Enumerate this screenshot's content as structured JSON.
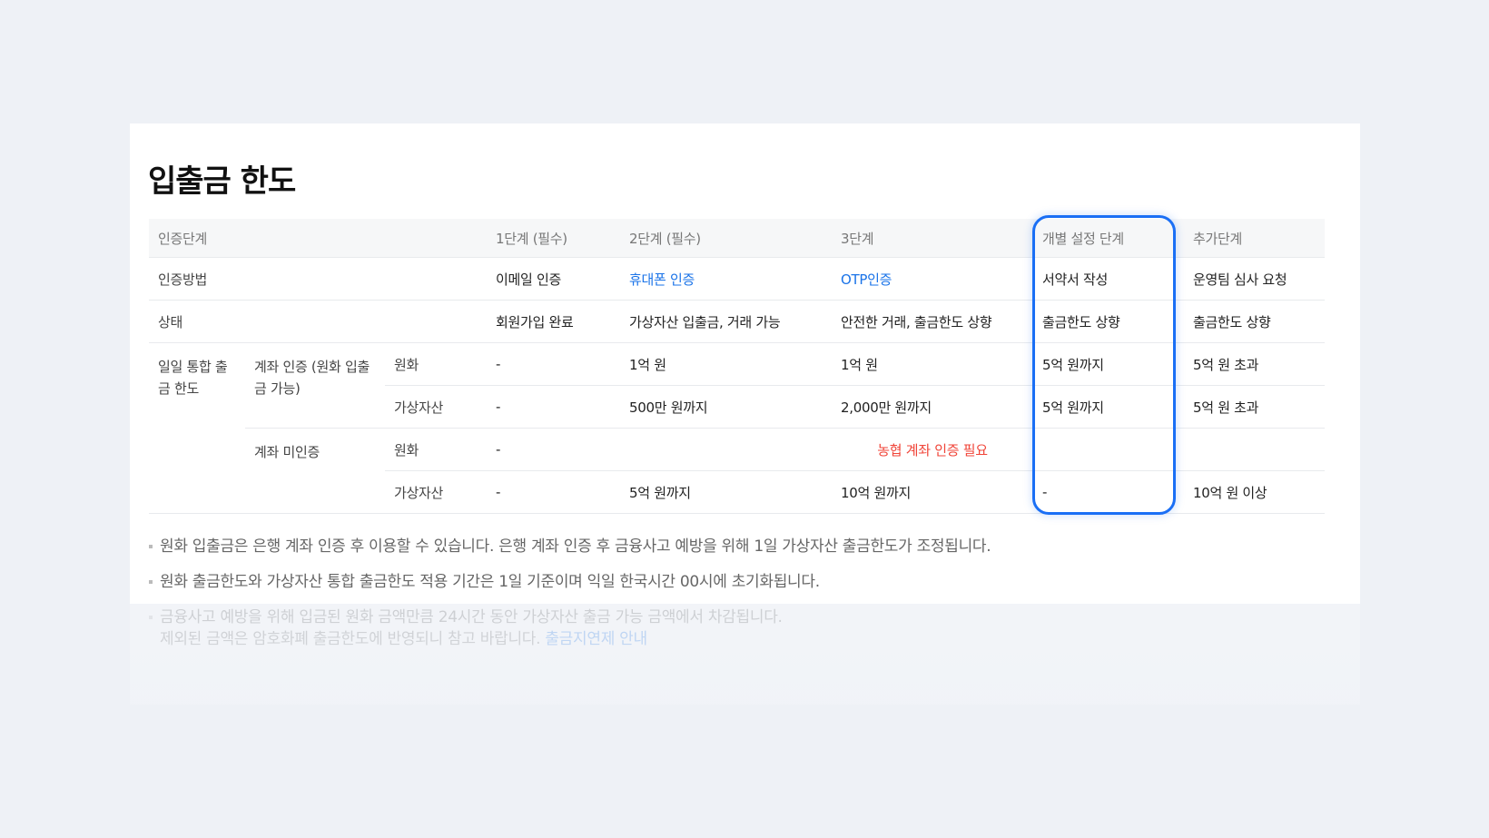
{
  "title": "입출금 한도",
  "table": {
    "headers": [
      "인증단계",
      "1단계 (필수)",
      "2단계 (필수)",
      "3단계",
      "개별 설정 단계",
      "추가단계"
    ],
    "method": {
      "label": "인증방법",
      "cells": [
        "이메일 인증",
        "휴대폰 인증",
        "OTP인증",
        "서약서 작성",
        "운영팀 심사 요청"
      ]
    },
    "status": {
      "label": "상태",
      "cells": [
        "회원가입 완료",
        "가상자산 입출금, 거래 가능",
        "안전한 거래, 출금한도 상향",
        "출금한도 상향",
        "출금한도 상향"
      ]
    },
    "daily_limit_label": "일일 통합 출금 한도",
    "verified": {
      "label": "계좌 인증 (원화 입출금 가능)",
      "krw": {
        "label": "원화",
        "cells": [
          "-",
          "1억 원",
          "1억 원",
          "5억 원까지",
          "5억 원 초과"
        ]
      },
      "crypto": {
        "label": "가상자산",
        "cells": [
          "-",
          "500만 원까지",
          "2,000만 원까지",
          "5억 원까지",
          "5억 원 초과"
        ]
      }
    },
    "unverified": {
      "label": "계좌 미인증",
      "krw": {
        "label": "원화",
        "cells": [
          "-",
          "농협 계좌 인증 필요"
        ]
      },
      "crypto": {
        "label": "가상자산",
        "cells": [
          "-",
          "5억 원까지",
          "10억 원까지",
          "-",
          "10억 원 이상"
        ]
      }
    }
  },
  "notes": [
    "원화 입출금은 은행 계좌 인증 후 이용할 수 있습니다. 은행 계좌 인증 후 금융사고 예방을 위해 1일 가상자산 출금한도가 조정됩니다.",
    "원화 출금한도와 가상자산 통합 출금한도 적용 기간은 1일 기준이며 익일 한국시간 00시에 초기화됩니다.",
    "금융사고 예방을 위해 입금된 원화 금액만큼 24시간 동안 가상자산 출금 가능 금액에서 차감됩니다."
  ],
  "note3_line2": "제외된 금액은 암호화폐 출금한도에 반영되니 참고 바랍니다.",
  "note3_link": "출금지연제 안내",
  "colors": {
    "highlight": "#1a6ff5",
    "link": "#1a73e8",
    "warning": "#f04438"
  }
}
